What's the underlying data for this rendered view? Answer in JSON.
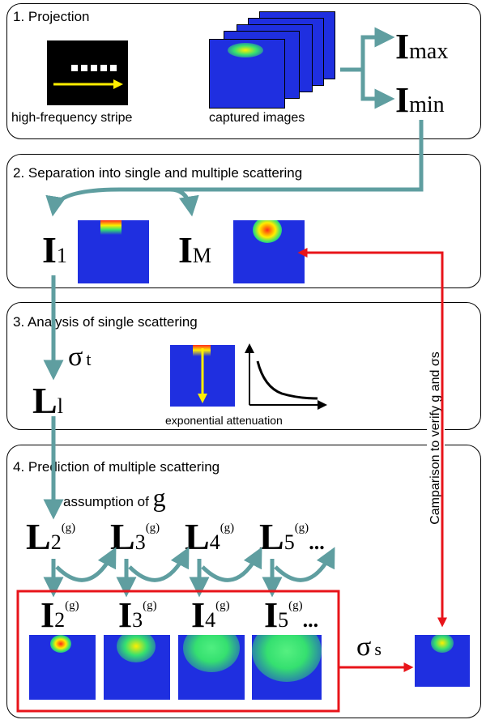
{
  "panels": [
    {
      "title": "1. Projection"
    },
    {
      "title": "2. Separation into single and multiple scattering"
    },
    {
      "title": "3. Analysis of single scattering"
    },
    {
      "title": "4. Prediction of multiple scattering"
    }
  ],
  "projection": {
    "stripe_caption": "high-frequency stripe",
    "captured_caption": "captured images",
    "imax": {
      "base": "I",
      "sub": "max"
    },
    "imin": {
      "base": "I",
      "sub": "min"
    }
  },
  "separation": {
    "i1": {
      "base": "I",
      "sub": "1"
    },
    "im": {
      "base": "I",
      "sub": "M"
    }
  },
  "single": {
    "sigma_t": {
      "base": "σ",
      "sub": "t"
    },
    "l1": {
      "base": "L",
      "sub": "l"
    },
    "atten_caption": "exponential attenuation"
  },
  "prediction": {
    "assumption_text": "assumption of ",
    "assumption_g": "g",
    "L_terms": [
      {
        "base": "L",
        "sub": "2",
        "sup": "(g)",
        "tail": ""
      },
      {
        "base": "L",
        "sub": "3",
        "sup": "(g)",
        "tail": ""
      },
      {
        "base": "L",
        "sub": "4",
        "sup": "(g)",
        "tail": ""
      },
      {
        "base": "L",
        "sub": "5",
        "sup": "(g)",
        "tail": "..."
      }
    ],
    "I_terms": [
      {
        "base": "I",
        "sub": "2",
        "sup": "(g)",
        "tail": ""
      },
      {
        "base": "I",
        "sub": "3",
        "sup": "(g)",
        "tail": ""
      },
      {
        "base": "I",
        "sub": "4",
        "sup": "(g)",
        "tail": ""
      },
      {
        "base": "I",
        "sub": "5",
        "sup": "(g)",
        "tail": "..."
      }
    ],
    "sigma_s": {
      "base": "σ",
      "sub": "s"
    }
  },
  "comparison_label": "Camparison to verify g and σs",
  "colors": {
    "teal": "#5f9ea0",
    "red": "#e8141a",
    "thumb_blue": "#1f2fe0",
    "yellow": "#ffee00"
  }
}
